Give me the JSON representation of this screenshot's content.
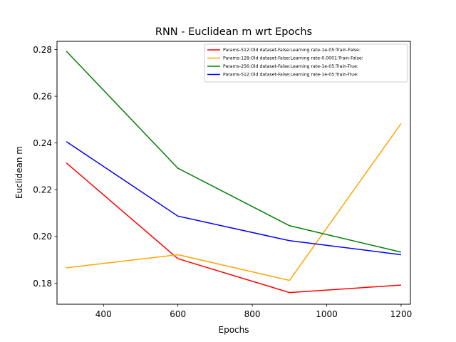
{
  "chart_data": {
    "type": "line",
    "title": "RNN - Euclidean m wrt Epochs",
    "xlabel": "Epochs",
    "ylabel": "Euclidean m",
    "xlim": [
      275,
      1225
    ],
    "ylim": [
      0.171,
      0.2835
    ],
    "xticks": [
      400,
      600,
      800,
      1000,
      1200
    ],
    "xtick_labels": [
      "400",
      "600",
      "800",
      "1000",
      "1200"
    ],
    "yticks": [
      0.18,
      0.2,
      0.22,
      0.24,
      0.26,
      0.28
    ],
    "ytick_labels": [
      "0.18",
      "0.20",
      "0.22",
      "0.24",
      "0.26",
      "0.28"
    ],
    "grid": false,
    "legend_position": "top-right",
    "x": [
      300,
      600,
      900,
      1200
    ],
    "series": [
      {
        "name": "Params-512:Old dataset-False:Learning rate-1e-05:Train-False:",
        "color": "#ff0000",
        "values": [
          0.2315,
          0.1905,
          0.176,
          0.1792
        ]
      },
      {
        "name": "Params-128:Old dataset-False:Learning rate-0.0001:Train-False:",
        "color": "#ffa500",
        "values": [
          0.1866,
          0.1922,
          0.1812,
          0.2483
        ]
      },
      {
        "name": "Params-256:Old dataset-False:Learning rate-1e-05:Train-True:",
        "color": "#008000",
        "values": [
          0.2793,
          0.2292,
          0.2046,
          0.1933
        ]
      },
      {
        "name": "Params-512:Old dataset-False:Learning rate-1e-05:Train-True:",
        "color": "#0000ff",
        "values": [
          0.2406,
          0.2087,
          0.1982,
          0.1922
        ]
      }
    ]
  }
}
